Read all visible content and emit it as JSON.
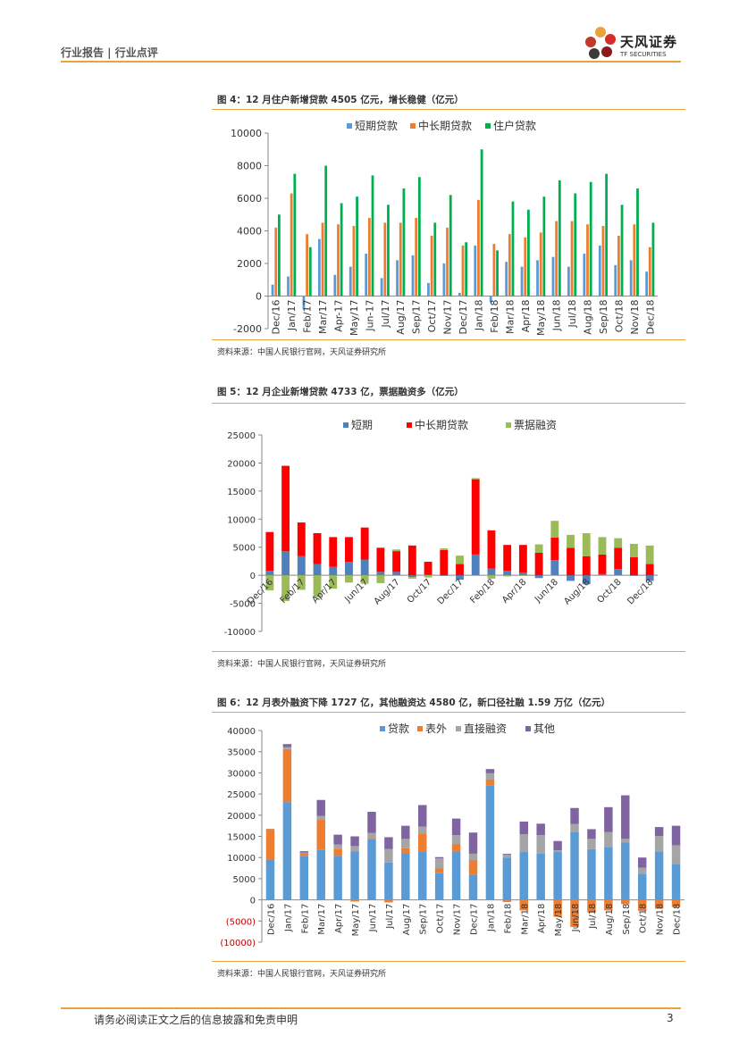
{
  "header": {
    "left": "行业报告 | 行业点评",
    "logo_cn": "天风证券",
    "logo_en": "TF SECURITIES"
  },
  "footer": {
    "disclaimer": "请务必阅读正文之后的信息披露和免责申明",
    "page": "3"
  },
  "colors": {
    "accent": "#e8a33d"
  },
  "figures": [
    {
      "title": "图 4：12 月住户新增贷款 4505 亿元，增长稳健（亿元）",
      "source": "资料来源：中国人民银行官网，天风证券研究所"
    },
    {
      "title": "图 5：12 月企业新增贷款 4733 亿，票据融资多（亿元）",
      "source": "资料来源：中国人民银行官网，天风证券研究所"
    },
    {
      "title": "图 6：12 月表外融资下降 1727 亿，其他融资达 4580 亿，新口径社融 1.59 万亿（亿元）",
      "source": "资料来源：中国人民银行官网，天风证券研究所"
    }
  ],
  "chart_data": [
    {
      "type": "bar",
      "categories": [
        "Dec/16",
        "Jan/17",
        "Feb/17",
        "Mar/17",
        "Apr-17",
        "May/17",
        "Jun-17",
        "Jul/17",
        "Aug/17",
        "Sep/17",
        "Oct/17",
        "Nov/17",
        "Dec/17",
        "Jan/18",
        "Feb/18",
        "Mar/18",
        "Apr/18",
        "May/18",
        "Jun/18",
        "Jul/18",
        "Aug/18",
        "Sep/18",
        "Oct/18",
        "Nov/18",
        "Dec/18"
      ],
      "ylim": [
        -2000,
        10000
      ],
      "yticks": [
        "-2000",
        "0",
        "2000",
        "4000",
        "6000",
        "8000",
        "10000"
      ],
      "legend": "top",
      "series": [
        {
          "name": "短期贷款",
          "color": "#5b9bd5",
          "values": [
            700,
            1200,
            -800,
            3500,
            1300,
            1800,
            2600,
            1100,
            2200,
            2500,
            800,
            2000,
            200,
            3100,
            -400,
            2100,
            1800,
            2200,
            2400,
            1800,
            2600,
            3100,
            1900,
            2200,
            1500
          ]
        },
        {
          "name": "中长期贷款",
          "color": "#ed7d31",
          "values": [
            4200,
            6300,
            3800,
            4500,
            4400,
            4300,
            4800,
            4500,
            4500,
            4800,
            3700,
            4200,
            3100,
            5900,
            3200,
            3800,
            3600,
            3900,
            4600,
            4600,
            4400,
            4300,
            3700,
            4400,
            3000
          ]
        },
        {
          "name": "住户贷款",
          "color": "#00b050",
          "values": [
            5000,
            7500,
            3000,
            8000,
            5700,
            6100,
            7400,
            5600,
            6600,
            7300,
            4500,
            6200,
            3300,
            9000,
            2800,
            5800,
            5300,
            6100,
            7100,
            6300,
            7000,
            7500,
            5600,
            6600,
            4500
          ]
        }
      ]
    },
    {
      "type": "bar",
      "stacked": true,
      "categories": [
        "Dec/16",
        "Jan/17",
        "Feb/17",
        "Mar/17",
        "Apr/17",
        "May/17",
        "Jun/17",
        "Jul/17",
        "Aug/17",
        "Sep/17",
        "Oct/17",
        "Nov/17",
        "Dec/17",
        "Jan/18",
        "Feb/18",
        "Mar/18",
        "Apr/18",
        "May/18",
        "Jun/18",
        "Jul/18",
        "Aug/18",
        "Sep/18",
        "Oct/18",
        "Nov/18",
        "Dec/18"
      ],
      "xtick_labels": [
        "Dec/16",
        "Feb/17",
        "Apr/17",
        "Jun/17",
        "Aug/17",
        "Oct/17",
        "Dec/17",
        "Feb/18",
        "Apr/18",
        "Jun/18",
        "Aug/18",
        "Oct/18",
        "Dec/18"
      ],
      "ylim": [
        -10000,
        25000
      ],
      "yticks": [
        "-10000",
        "-5000",
        "0",
        "5000",
        "10000",
        "15000",
        "20000",
        "25000"
      ],
      "legend": "top",
      "series": [
        {
          "name": "短期",
          "color": "#4f81bd",
          "values": [
            800,
            4300,
            3400,
            2000,
            1500,
            2400,
            2800,
            600,
            600,
            -300,
            100,
            -100,
            -800,
            3700,
            1200,
            800,
            500,
            -500,
            2700,
            -1000,
            -1600,
            200,
            1100,
            -100,
            -1000
          ]
        },
        {
          "name": "中长期贷款",
          "color": "#ff0000",
          "values": [
            6900,
            15200,
            6000,
            5500,
            5300,
            4400,
            5700,
            4300,
            3700,
            5300,
            2300,
            4500,
            2000,
            13400,
            6800,
            4600,
            4900,
            4000,
            4000,
            4900,
            3400,
            3500,
            3800,
            3200,
            2000
          ]
        },
        {
          "name": "票据融资",
          "color": "#9bbb59",
          "values": [
            -2700,
            -4600,
            -2600,
            -3900,
            -2400,
            -1300,
            -1500,
            -1400,
            300,
            -300,
            -400,
            300,
            1500,
            200,
            -600,
            -200,
            -100,
            1500,
            3000,
            2300,
            4100,
            3100,
            1700,
            2400,
            3300
          ]
        }
      ]
    },
    {
      "type": "bar",
      "stacked": true,
      "categories": [
        "Dec/16",
        "Jan/17",
        "Feb/17",
        "Mar/17",
        "Apr/17",
        "May/17",
        "Jun/17",
        "Jul/17",
        "Aug/17",
        "Sep/17",
        "Oct/17",
        "Nov/17",
        "Dec/17",
        "Jan/18",
        "Feb/18",
        "Mar/18",
        "Apr/18",
        "May/18",
        "Jun/18",
        "Jul/18",
        "Aug/18",
        "Sep/18",
        "Oct/18",
        "Nov/18",
        "Dec/18"
      ],
      "ylim": [
        -10000,
        40000
      ],
      "yticks": [
        "(10000)",
        "(5000)",
        "0",
        "5000",
        "10000",
        "15000",
        "20000",
        "25000",
        "30000",
        "35000",
        "40000"
      ],
      "legend": "top",
      "series": [
        {
          "name": "贷款",
          "color": "#5b9bd5",
          "values": [
            9500,
            23100,
            10400,
            11800,
            10400,
            11500,
            14400,
            8800,
            11000,
            11400,
            6300,
            11400,
            5900,
            27000,
            10000,
            11300,
            10900,
            11300,
            16100,
            12000,
            12500,
            13600,
            6200,
            11400,
            8500
          ]
        },
        {
          "name": "表外",
          "color": "#ed7d31",
          "values": [
            7200,
            12500,
            600,
            7100,
            1700,
            -400,
            200,
            -600,
            1200,
            4300,
            1100,
            1800,
            3500,
            1400,
            -500,
            -2500,
            -100,
            -4000,
            -6400,
            -3000,
            -2500,
            -1000,
            -2600,
            -2100,
            -1700
          ]
        },
        {
          "name": "直接融资",
          "color": "#a5a5a5",
          "values": [
            100,
            500,
            200,
            900,
            1000,
            1200,
            1200,
            3200,
            2200,
            1600,
            2400,
            2100,
            1500,
            1500,
            700,
            4200,
            4400,
            400,
            1800,
            2400,
            3500,
            800,
            1400,
            3700,
            4400
          ]
        },
        {
          "name": "其他",
          "color": "#8064a2",
          "values": [
            0,
            700,
            300,
            3800,
            2300,
            2300,
            5000,
            2800,
            3100,
            5100,
            300,
            3900,
            5000,
            1000,
            200,
            3000,
            2700,
            2200,
            3800,
            2300,
            5900,
            10300,
            2400,
            2100,
            4600
          ]
        }
      ]
    }
  ]
}
